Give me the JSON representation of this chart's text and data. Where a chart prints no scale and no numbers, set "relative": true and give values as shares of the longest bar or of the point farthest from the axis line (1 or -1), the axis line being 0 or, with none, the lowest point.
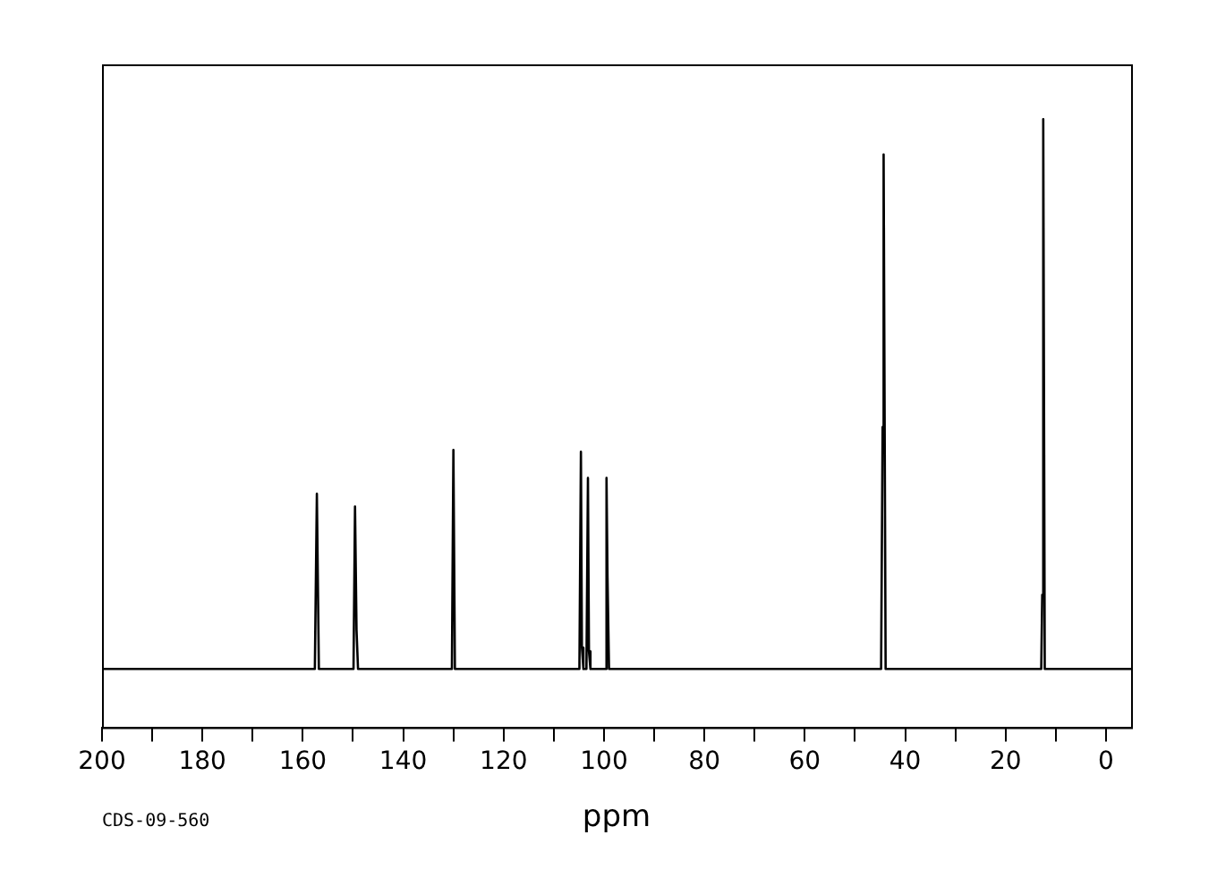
{
  "chart_data": {
    "type": "line",
    "relative": true,
    "xlabel": "ppm",
    "annotations": [
      "CDS-09-560"
    ],
    "xlim": [
      200,
      -5
    ],
    "xticks": [
      200,
      {
        "value": 190,
        "label": null
      },
      180,
      {
        "value": 170,
        "label": null
      },
      160,
      {
        "value": 150,
        "label": null
      },
      140,
      {
        "value": 130,
        "label": null
      },
      120,
      {
        "value": 110,
        "label": null
      },
      100,
      {
        "value": 90,
        "label": null
      },
      80,
      {
        "value": 70,
        "label": null
      },
      60,
      {
        "value": 50,
        "label": null
      },
      40,
      {
        "value": 30,
        "label": null
      },
      20,
      {
        "value": 10,
        "label": null
      },
      0
    ],
    "grid": false,
    "legend": false,
    "marker": "none",
    "line_style": "solid",
    "x": [
      200,
      157.6,
      157.2,
      156.8,
      149.9,
      149.6,
      149.3,
      149.0,
      130.3,
      130.0,
      129.7,
      104.9,
      104.6,
      104.4,
      104.1,
      103.5,
      103.2,
      103.0,
      102.7,
      99.8,
      99.5,
      99.3,
      99.0,
      44.8,
      44.5,
      44.3,
      43.9,
      12.9,
      12.7,
      12.5,
      12.2,
      -5
    ],
    "series": [
      {
        "color": "#000000",
        "values": [
          0.096,
          0.096,
          0.384,
          0.096,
          0.096,
          0.363,
          0.16,
          0.096,
          0.096,
          0.456,
          0.096,
          0.096,
          0.453,
          0.131,
          0.096,
          0.096,
          0.41,
          0.125,
          0.096,
          0.096,
          0.41,
          0.247,
          0.096,
          0.096,
          0.494,
          0.942,
          0.096,
          0.096,
          0.218,
          1,
          0.096,
          0.096
        ]
      }
    ]
  }
}
